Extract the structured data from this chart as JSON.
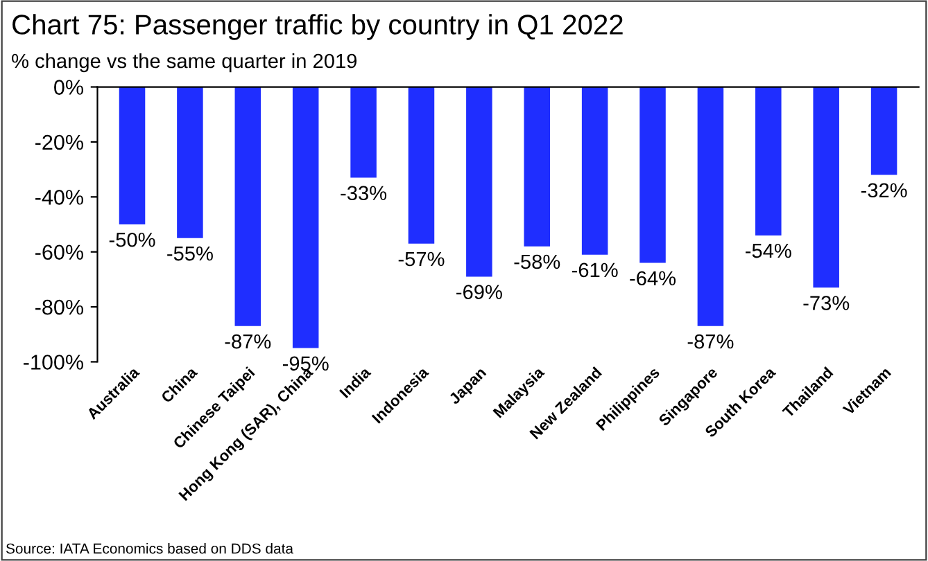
{
  "chart_data": {
    "type": "bar",
    "title": "Chart 75: Passenger traffic by country in Q1 2022",
    "subtitle": "% change vs the same quarter in 2019",
    "categories": [
      "Australia",
      "China",
      "Chinese Taipei",
      "Hong Kong (SAR), China",
      "India",
      "Indonesia",
      "Japan",
      "Malaysia",
      "New Zealand",
      "Philippines",
      "Singapore",
      "South Korea",
      "Thailand",
      "Vietnam"
    ],
    "values": [
      -50,
      -55,
      -87,
      -95,
      -33,
      -57,
      -69,
      -58,
      -61,
      -64,
      -87,
      -54,
      -73,
      -32
    ],
    "value_labels": [
      "-50%",
      "-55%",
      "-87%",
      "-95%",
      "-33%",
      "-57%",
      "-69%",
      "-58%",
      "-61%",
      "-64%",
      "-87%",
      "-54%",
      "-73%",
      "-32%"
    ],
    "color": "#1f2eff",
    "ylim": [
      -100,
      0
    ],
    "yticks": [
      {
        "value": 0,
        "label": "0%"
      },
      {
        "value": -20,
        "label": "-20%"
      },
      {
        "value": -40,
        "label": "-40%"
      },
      {
        "value": -60,
        "label": "-60%"
      },
      {
        "value": -80,
        "label": "-80%"
      },
      {
        "value": -100,
        "label": "-100%"
      }
    ],
    "grid": false,
    "legend": false,
    "annotations": [
      "Source: IATA Economics based on DDS data"
    ]
  }
}
